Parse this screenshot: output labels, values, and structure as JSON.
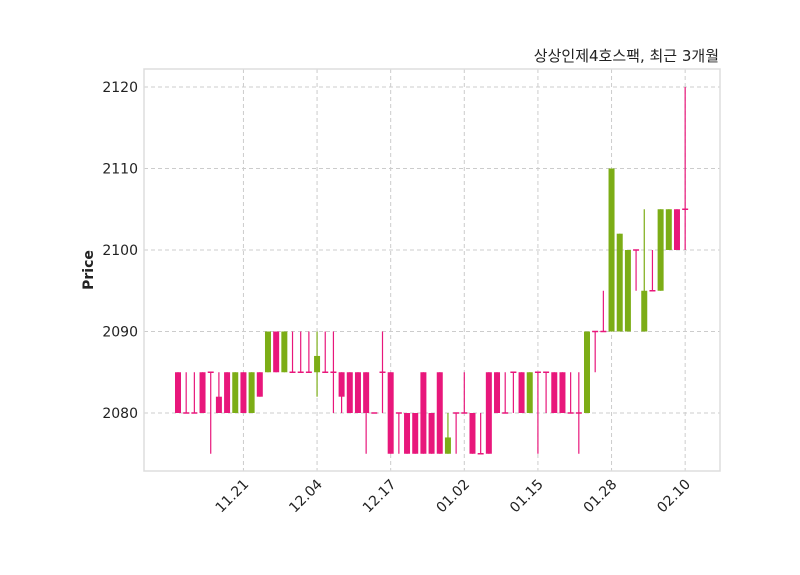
{
  "chart_data": {
    "type": "candlestick",
    "title": "상상인제4호스팩, 최근 3개월",
    "xlabel": "",
    "ylabel": "Price",
    "ylim": [
      2073,
      2122.5
    ],
    "yticks": [
      2080,
      2090,
      2100,
      2110,
      2120
    ],
    "xticks": [
      {
        "index": 8,
        "label": "11.21"
      },
      {
        "index": 17,
        "label": "12.04"
      },
      {
        "index": 26,
        "label": "12.17"
      },
      {
        "index": 35,
        "label": "01.02"
      },
      {
        "index": 44,
        "label": "01.15"
      },
      {
        "index": 53,
        "label": "01.28"
      },
      {
        "index": 62,
        "label": "02.10"
      }
    ],
    "grid": true,
    "colors": {
      "up": "#7cad16",
      "down": "#e8177b",
      "grid": "#cccccc",
      "frame": "#dddddd"
    },
    "candles": [
      [
        2085,
        2085,
        2080,
        2080
      ],
      [
        2080,
        2085,
        2080,
        2080
      ],
      [
        2080,
        2085,
        2080,
        2080
      ],
      [
        2085,
        2085,
        2080,
        2080
      ],
      [
        2085,
        2085,
        2075,
        2085
      ],
      [
        2082,
        2085,
        2080,
        2080
      ],
      [
        2085,
        2085,
        2080,
        2080
      ],
      [
        2080,
        2085,
        2080,
        2085
      ],
      [
        2085,
        2085,
        2080,
        2080
      ],
      [
        2080,
        2085,
        2080,
        2085
      ],
      [
        2085,
        2085,
        2082,
        2082
      ],
      [
        2085,
        2090,
        2085,
        2090
      ],
      [
        2090,
        2090,
        2085,
        2085
      ],
      [
        2085,
        2090,
        2085,
        2090
      ],
      [
        2085,
        2090,
        2085,
        2085
      ],
      [
        2085,
        2090,
        2085,
        2085
      ],
      [
        2085,
        2090,
        2085,
        2085
      ],
      [
        2085,
        2090,
        2082,
        2087
      ],
      [
        2085,
        2090,
        2085,
        2085
      ],
      [
        2085,
        2090,
        2080,
        2085
      ],
      [
        2085,
        2085,
        2080,
        2082
      ],
      [
        2085,
        2085,
        2080,
        2080
      ],
      [
        2085,
        2085,
        2080,
        2080
      ],
      [
        2085,
        2085,
        2075,
        2080
      ],
      [
        2080,
        2080,
        2080,
        2080
      ],
      [
        2085,
        2090,
        2080,
        2085
      ],
      [
        2085,
        2085,
        2075,
        2075
      ],
      [
        2080,
        2080,
        2075,
        2080
      ],
      [
        2080,
        2080,
        2075,
        2075
      ],
      [
        2080,
        2080,
        2075,
        2075
      ],
      [
        2085,
        2085,
        2075,
        2075
      ],
      [
        2080,
        2080,
        2075,
        2075
      ],
      [
        2085,
        2085,
        2075,
        2075
      ],
      [
        2075,
        2080,
        2075,
        2077
      ],
      [
        2080,
        2080,
        2075,
        2080
      ],
      [
        2080,
        2085,
        2080,
        2080
      ],
      [
        2080,
        2080,
        2075,
        2075
      ],
      [
        2075,
        2080,
        2075,
        2075
      ],
      [
        2085,
        2085,
        2075,
        2075
      ],
      [
        2085,
        2085,
        2080,
        2080
      ],
      [
        2080,
        2085,
        2080,
        2080
      ],
      [
        2085,
        2085,
        2080,
        2085
      ],
      [
        2085,
        2085,
        2080,
        2080
      ],
      [
        2080,
        2085,
        2080,
        2085
      ],
      [
        2085,
        2085,
        2075,
        2085
      ],
      [
        2085,
        2085,
        2080,
        2085
      ],
      [
        2085,
        2085,
        2080,
        2080
      ],
      [
        2085,
        2085,
        2080,
        2080
      ],
      [
        2080,
        2085,
        2080,
        2080
      ],
      [
        2080,
        2085,
        2075,
        2080
      ],
      [
        2080,
        2090,
        2080,
        2090
      ],
      [
        2090,
        2090,
        2085,
        2090
      ],
      [
        2090,
        2095,
        2090,
        2090
      ],
      [
        2090,
        2110,
        2090,
        2110
      ],
      [
        2090,
        2102,
        2090,
        2102
      ],
      [
        2090,
        2100,
        2090,
        2100
      ],
      [
        2100,
        2100,
        2095,
        2100
      ],
      [
        2090,
        2105,
        2090,
        2095
      ],
      [
        2095,
        2100,
        2095,
        2095
      ],
      [
        2095,
        2105,
        2095,
        2105
      ],
      [
        2100,
        2105,
        2100,
        2105
      ],
      [
        2105,
        2105,
        2100,
        2100
      ],
      [
        2105,
        2120,
        2100,
        2105
      ]
    ],
    "candle_fields": [
      "open",
      "high",
      "low",
      "close"
    ]
  }
}
